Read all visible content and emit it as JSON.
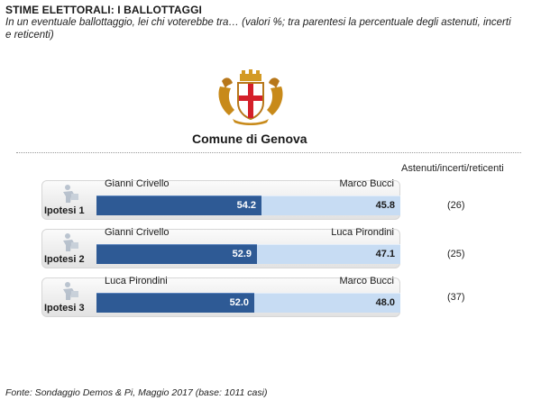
{
  "header": {
    "title": "STIME ELETTORALI: I BALLOTTAGGI",
    "subtitle": "In un eventuale ballottaggio, lei chi voterebbe tra… (valori %; tra parentesi la percentuale degli astenuti, incerti e reticenti)"
  },
  "org_name": "Comune di Genova",
  "column_header": "Astenuti/incerti/reticenti",
  "colors": {
    "left_bar": "#2e5a95",
    "right_bar": "#c7dcf3"
  },
  "chart_data": {
    "type": "bar",
    "orientation": "horizontal",
    "stacked": "100%",
    "categories": [
      "Ipotesi 1",
      "Ipotesi 2",
      "Ipotesi 3"
    ],
    "rows": [
      {
        "label": "Ipotesi 1",
        "left_name": "Gianni Crivello",
        "left_value": 54.2,
        "left_text": "54.2",
        "right_name": "Marco Bucci",
        "right_value": 45.8,
        "right_text": "45.8",
        "undecided": "(26)"
      },
      {
        "label": "Ipotesi 2",
        "left_name": "Gianni Crivello",
        "left_value": 52.9,
        "left_text": "52.9",
        "right_name": "Luca Pirondini",
        "right_value": 47.1,
        "right_text": "47.1",
        "undecided": "(25)"
      },
      {
        "label": "Ipotesi 3",
        "left_name": "Luca Pirondini",
        "left_value": 52.0,
        "left_text": "52.0",
        "right_name": "Marco Bucci",
        "right_value": 48.0,
        "right_text": "48.0",
        "undecided": "(37)"
      }
    ],
    "xlim": [
      0,
      100
    ]
  },
  "footer": {
    "source": "Fonte: Sondaggio Demos & Pi, Maggio 2017 (base: 1011 casi)"
  }
}
